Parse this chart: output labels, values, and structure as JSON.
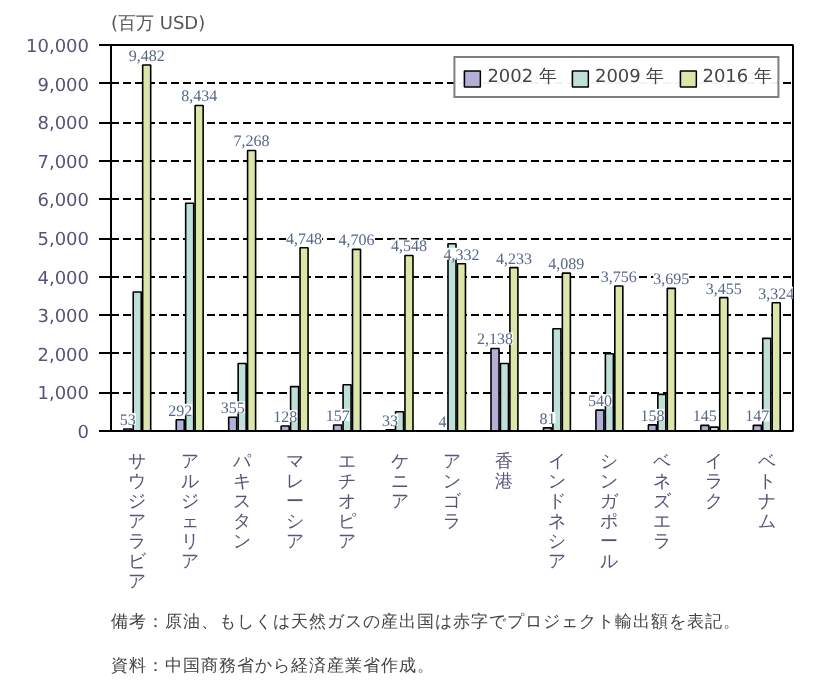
{
  "chart_data": {
    "type": "bar",
    "title": "(百万 USD)",
    "categories": [
      "サウジアラビア",
      "アルジェリア",
      "パキスタン",
      "マレーシア",
      "エチオピア",
      "ケニア",
      "アンゴラ",
      "香港",
      "インドネシア",
      "シンガポール",
      "ベネズエラ",
      "イラク",
      "ベトナム"
    ],
    "series": [
      {
        "name": "2002 年",
        "color": "#b3b0d8",
        "values": [
          53,
          292,
          355,
          128,
          157,
          33,
          4,
          2138,
          81,
          540,
          158,
          145,
          147
        ],
        "value_labels": [
          "53",
          "292",
          "355",
          "128",
          "157",
          "33",
          "4",
          "2,138",
          "81",
          "540",
          "158",
          "145",
          "147"
        ]
      },
      {
        "name": "2009 年",
        "color": "#bfe0d8",
        "values": [
          3600,
          5900,
          1750,
          1150,
          1200,
          500,
          4850,
          1750,
          2650,
          2000,
          950,
          100,
          2400
        ]
      },
      {
        "name": "2016 年",
        "color": "#dbe6a8",
        "values": [
          9482,
          8434,
          7268,
          4748,
          4706,
          4548,
          4332,
          4233,
          4089,
          3756,
          3695,
          3455,
          3324
        ],
        "value_labels": [
          "9,482",
          "8,434",
          "7,268",
          "4,748",
          "4,706",
          "4,548",
          "4,332",
          "4,233",
          "4,089",
          "3,756",
          "3,695",
          "3,455",
          "3,324"
        ]
      }
    ],
    "ylim": [
      0,
      10000
    ],
    "yticks": [
      {
        "value": 0,
        "label": "0"
      },
      {
        "value": 1000,
        "label": "1,000"
      },
      {
        "value": 2000,
        "label": "2,000"
      },
      {
        "value": 3000,
        "label": "3,000"
      },
      {
        "value": 4000,
        "label": "4,000"
      },
      {
        "value": 5000,
        "label": "5,000"
      },
      {
        "value": 6000,
        "label": "6,000"
      },
      {
        "value": 7000,
        "label": "7,000"
      },
      {
        "value": 8000,
        "label": "8,000"
      },
      {
        "value": 9000,
        "label": "9,000"
      },
      {
        "value": 10000,
        "label": "10,000"
      }
    ],
    "grid": "y",
    "legend": "top right",
    "annotations": [
      "備考：原油、もしくは天然ガスの産出国は赤字でプロジェクト輸出額を表記。",
      "資料：中国商務省から経済産業省作成。"
    ]
  }
}
